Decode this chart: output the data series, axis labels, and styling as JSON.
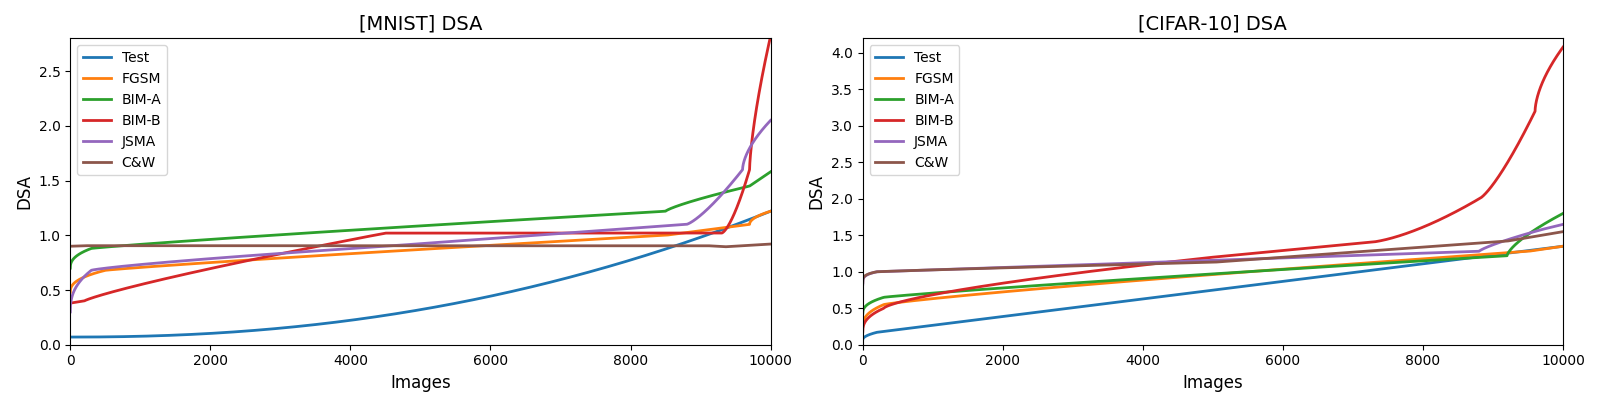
{
  "mnist": {
    "title": "[MNIST] DSA",
    "xlabel": "Images",
    "ylabel": "DSA",
    "xlim": [
      0,
      10000
    ],
    "ylim": [
      0.0,
      2.8
    ],
    "yticks": [
      0.0,
      0.5,
      1.0,
      1.5,
      2.0,
      2.5
    ],
    "n": 10000
  },
  "cifar": {
    "title": "[CIFAR-10] DSA",
    "xlabel": "Images",
    "ylabel": "DSA",
    "xlim": [
      0,
      10000
    ],
    "ylim": [
      0.0,
      4.2
    ],
    "yticks": [
      0.0,
      0.5,
      1.0,
      1.5,
      2.0,
      2.5,
      3.0,
      3.5,
      4.0
    ],
    "n": 10000
  },
  "colors": {
    "Test": "#1f77b4",
    "FGSM": "#ff7f0e",
    "BIM-A": "#2ca02c",
    "BIM-B": "#d62728",
    "JSMA": "#9467bd",
    "C&W": "#8c564b"
  },
  "legend_labels": [
    "Test",
    "FGSM",
    "BIM-A",
    "BIM-B",
    "JSMA",
    "C&W"
  ],
  "linewidth": 2.0
}
